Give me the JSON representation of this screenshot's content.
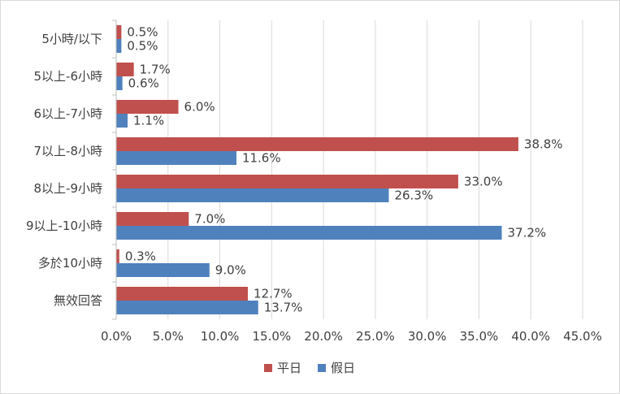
{
  "chart_data": {
    "type": "bar",
    "orientation": "horizontal",
    "categories": [
      "5小時/以下",
      "5以上-6小時",
      "6以上-7小時",
      "7以上-8小時",
      "8以上-9小時",
      "9以上-10小時",
      "多於10小時",
      "無效回答"
    ],
    "series": [
      {
        "name": "平日",
        "color": "#c0504d",
        "values": [
          0.5,
          1.7,
          6.0,
          38.8,
          33.0,
          7.0,
          0.3,
          12.7
        ],
        "labels": [
          "0.5%",
          "1.7%",
          "6.0%",
          "38.8%",
          "33.0%",
          "7.0%",
          "0.3%",
          "12.7%"
        ]
      },
      {
        "name": "假日",
        "color": "#4f81bd",
        "values": [
          0.5,
          0.6,
          1.1,
          11.6,
          26.3,
          37.2,
          9.0,
          13.7
        ],
        "labels": [
          "0.5%",
          "0.6%",
          "1.1%",
          "11.6%",
          "26.3%",
          "37.2%",
          "9.0%",
          "13.7%"
        ]
      }
    ],
    "xlim": [
      0,
      45
    ],
    "xticks": [
      0,
      5,
      10,
      15,
      20,
      25,
      30,
      35,
      40,
      45
    ],
    "xtick_labels": [
      "0.0%",
      "5.0%",
      "10.0%",
      "15.0%",
      "20.0%",
      "25.0%",
      "30.0%",
      "35.0%",
      "40.0%",
      "45.0%"
    ],
    "grid": true,
    "legend_position": "bottom-center"
  }
}
